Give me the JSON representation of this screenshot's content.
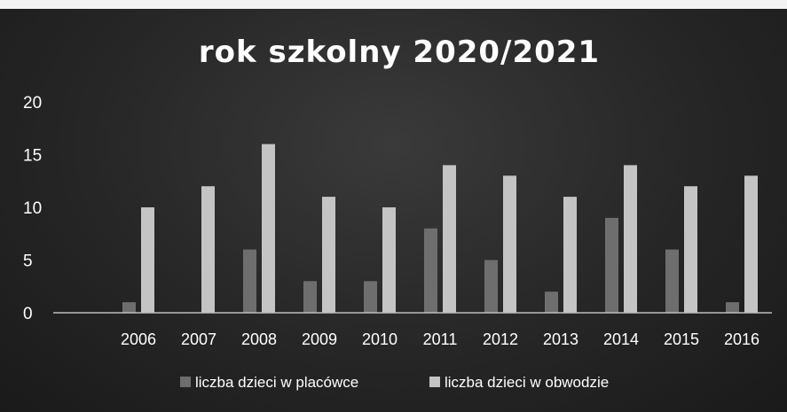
{
  "chart_data": {
    "type": "bar",
    "title": "rok szkolny 2020/2021",
    "xlabel": "",
    "ylabel": "",
    "categories": [
      "2006",
      "2007",
      "2008",
      "2009",
      "2010",
      "2011",
      "2012",
      "2013",
      "2014",
      "2015",
      "2016"
    ],
    "series": [
      {
        "name": "liczba dzieci w placówce",
        "color": "#6e6e6e",
        "values": [
          1,
          0,
          6,
          3,
          3,
          8,
          5,
          2,
          9,
          6,
          1
        ]
      },
      {
        "name": "liczba dzieci w obwodzie",
        "color": "#c4c4c4",
        "values": [
          10,
          12,
          16,
          11,
          10,
          14,
          13,
          11,
          14,
          12,
          13
        ]
      }
    ],
    "ylim": [
      0,
      20
    ],
    "yticks": [
      0,
      5,
      10,
      15,
      20
    ],
    "grid": false,
    "legend_position": "bottom",
    "background": "#2a2a2a"
  }
}
